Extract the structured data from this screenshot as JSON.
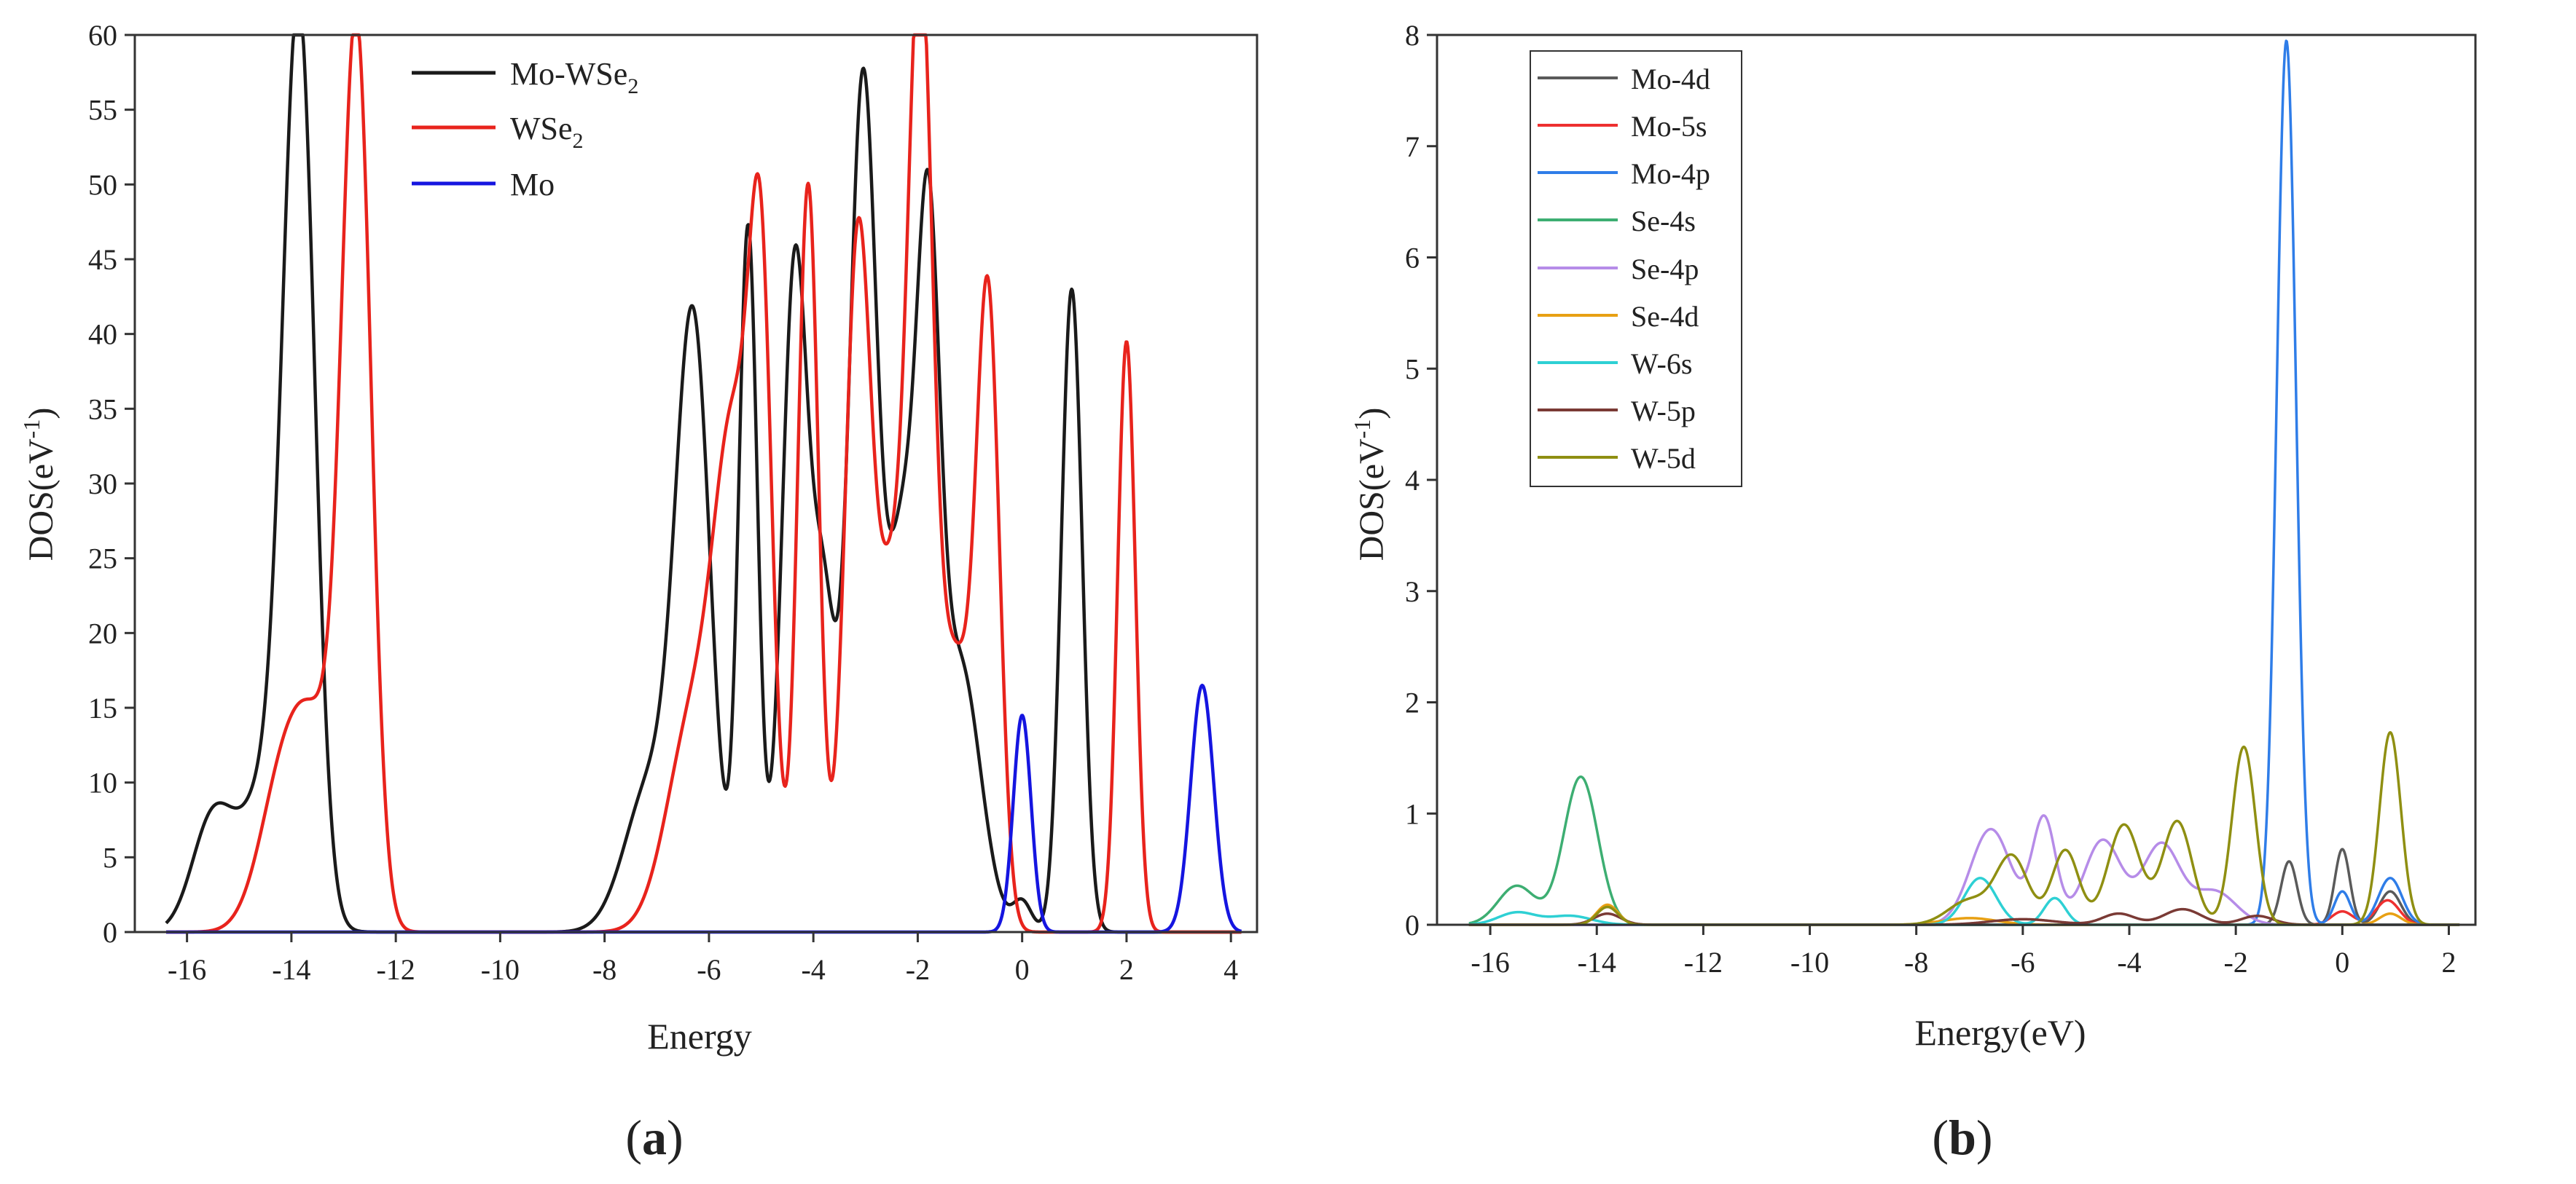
{
  "chart_data": [
    {
      "panel": "a",
      "caption_open": "(",
      "caption_letter": "a",
      "caption_close": ")",
      "type": "line",
      "title": "",
      "xlabel": "Energy",
      "ylabel_main": "DOS(eV",
      "ylabel_sup": "-1",
      "ylabel_close": ")",
      "xlim": [
        -17,
        4.5
      ],
      "ylim": [
        0,
        60
      ],
      "xticks": [
        -16,
        -14,
        -12,
        -10,
        -8,
        -6,
        -4,
        -2,
        0,
        2,
        4
      ],
      "yticks": [
        0,
        5,
        10,
        15,
        20,
        25,
        30,
        35,
        40,
        45,
        50,
        55,
        60
      ],
      "grid": false,
      "legend_position": "top-left",
      "series": [
        {
          "name": "Mo-WSe2",
          "legend_main": "Mo-WSe",
          "legend_sub": "2",
          "color": "#1a1a1a",
          "peaks": [
            [
              -15.5,
              7.5,
              0.4
            ],
            [
              -13.85,
              57,
              0.3
            ],
            [
              -14.4,
              10,
              0.5
            ],
            [
              -7.1,
              10,
              0.5
            ],
            [
              -6.3,
              39,
              0.33
            ],
            [
              -5.25,
              47,
              0.18
            ],
            [
              -4.35,
              45,
              0.25
            ],
            [
              -3.8,
              20,
              0.22
            ],
            [
              -3.05,
              57,
              0.27
            ],
            [
              -2.3,
              25,
              0.28
            ],
            [
              -1.8,
              40,
              0.22
            ],
            [
              -1.2,
              18,
              0.4
            ],
            [
              0.0,
              2,
              0.18
            ],
            [
              0.95,
              43,
              0.2
            ]
          ]
        },
        {
          "name": "WSe2",
          "legend_main": "WSe",
          "legend_sub": "2",
          "color": "#e8231c",
          "peaks": [
            [
              -14.2,
              8,
              0.45
            ],
            [
              -12.75,
              57.5,
              0.28
            ],
            [
              -13.5,
              12,
              0.5
            ],
            [
              -6.3,
              14,
              0.5
            ],
            [
              -5.5,
              30,
              0.38
            ],
            [
              -5.0,
              36,
              0.22
            ],
            [
              -4.1,
              50,
              0.2
            ],
            [
              -3.15,
              45.5,
              0.25
            ],
            [
              -1.95,
              59,
              0.23
            ],
            [
              -2.5,
              22,
              0.3
            ],
            [
              -0.65,
              40.5,
              0.22
            ],
            [
              -1.3,
              18,
              0.35
            ],
            [
              2.0,
              39.5,
              0.17
            ]
          ]
        },
        {
          "name": "Mo",
          "legend_main": "Mo",
          "legend_sub": "",
          "color": "#1515e0",
          "peaks": [
            [
              0.0,
              14.5,
              0.17
            ],
            [
              3.45,
              16.5,
              0.22
            ]
          ]
        }
      ]
    },
    {
      "panel": "b",
      "caption_open": "(",
      "caption_letter": "b",
      "caption_close": ")",
      "type": "line",
      "title": "",
      "xlabel": "Energy(eV)",
      "ylabel_main": "DOS(eV",
      "ylabel_sup": "-1",
      "ylabel_close": ")",
      "xlim": [
        -17,
        2.5
      ],
      "ylim": [
        0,
        8
      ],
      "xticks": [
        -16,
        -14,
        -12,
        -10,
        -8,
        -6,
        -4,
        -2,
        0,
        2
      ],
      "yticks": [
        0,
        1,
        2,
        3,
        4,
        5,
        6,
        7,
        8
      ],
      "grid": false,
      "legend_position": "top-left",
      "series": [
        {
          "name": "Mo-4d",
          "color": "#5a5a5a",
          "peaks": [
            [
              -1.0,
              0.57,
              0.15
            ],
            [
              0.0,
              0.68,
              0.14
            ],
            [
              0.9,
              0.3,
              0.2
            ]
          ]
        },
        {
          "name": "Mo-5s",
          "color": "#ee3030",
          "peaks": [
            [
              0.0,
              0.12,
              0.2
            ],
            [
              0.85,
              0.22,
              0.22
            ]
          ]
        },
        {
          "name": "Mo-4p",
          "color": "#2f7de8",
          "peaks": [
            [
              -1.05,
              7.95,
              0.18
            ],
            [
              0.0,
              0.3,
              0.15
            ],
            [
              0.9,
              0.42,
              0.22
            ]
          ]
        },
        {
          "name": "Se-4s",
          "color": "#3dae72",
          "peaks": [
            [
              -15.5,
              0.35,
              0.35
            ],
            [
              -14.3,
              1.33,
              0.32
            ]
          ]
        },
        {
          "name": "Se-4p",
          "color": "#b68ce8",
          "peaks": [
            [
              -6.6,
              0.86,
              0.38
            ],
            [
              -5.6,
              0.95,
              0.22
            ],
            [
              -4.5,
              0.76,
              0.35
            ],
            [
              -3.4,
              0.72,
              0.35
            ],
            [
              -2.4,
              0.3,
              0.4
            ]
          ]
        },
        {
          "name": "Se-4d",
          "color": "#e8a013",
          "peaks": [
            [
              -13.8,
              0.18,
              0.2
            ],
            [
              -7.0,
              0.06,
              0.5
            ],
            [
              0.9,
              0.1,
              0.2
            ]
          ]
        },
        {
          "name": "W-6s",
          "color": "#2ed0d4",
          "peaks": [
            [
              -15.5,
              0.11,
              0.35
            ],
            [
              -14.5,
              0.08,
              0.4
            ],
            [
              -6.8,
              0.42,
              0.3
            ],
            [
              -5.4,
              0.24,
              0.2
            ]
          ]
        },
        {
          "name": "W-5p",
          "color": "#7a3a35",
          "peaks": [
            [
              -13.8,
              0.1,
              0.25
            ],
            [
              -6.0,
              0.05,
              0.6
            ],
            [
              -4.2,
              0.1,
              0.3
            ],
            [
              -3.0,
              0.14,
              0.35
            ],
            [
              -1.6,
              0.08,
              0.3
            ]
          ]
        },
        {
          "name": "W-5d",
          "color": "#8f8f12",
          "peaks": [
            [
              -13.8,
              0.16,
              0.2
            ],
            [
              -7.0,
              0.22,
              0.4
            ],
            [
              -6.2,
              0.6,
              0.3
            ],
            [
              -5.2,
              0.67,
              0.25
            ],
            [
              -4.1,
              0.9,
              0.3
            ],
            [
              -3.1,
              0.93,
              0.28
            ],
            [
              -1.85,
              1.6,
              0.22
            ],
            [
              0.9,
              1.73,
              0.2
            ]
          ]
        }
      ]
    }
  ]
}
